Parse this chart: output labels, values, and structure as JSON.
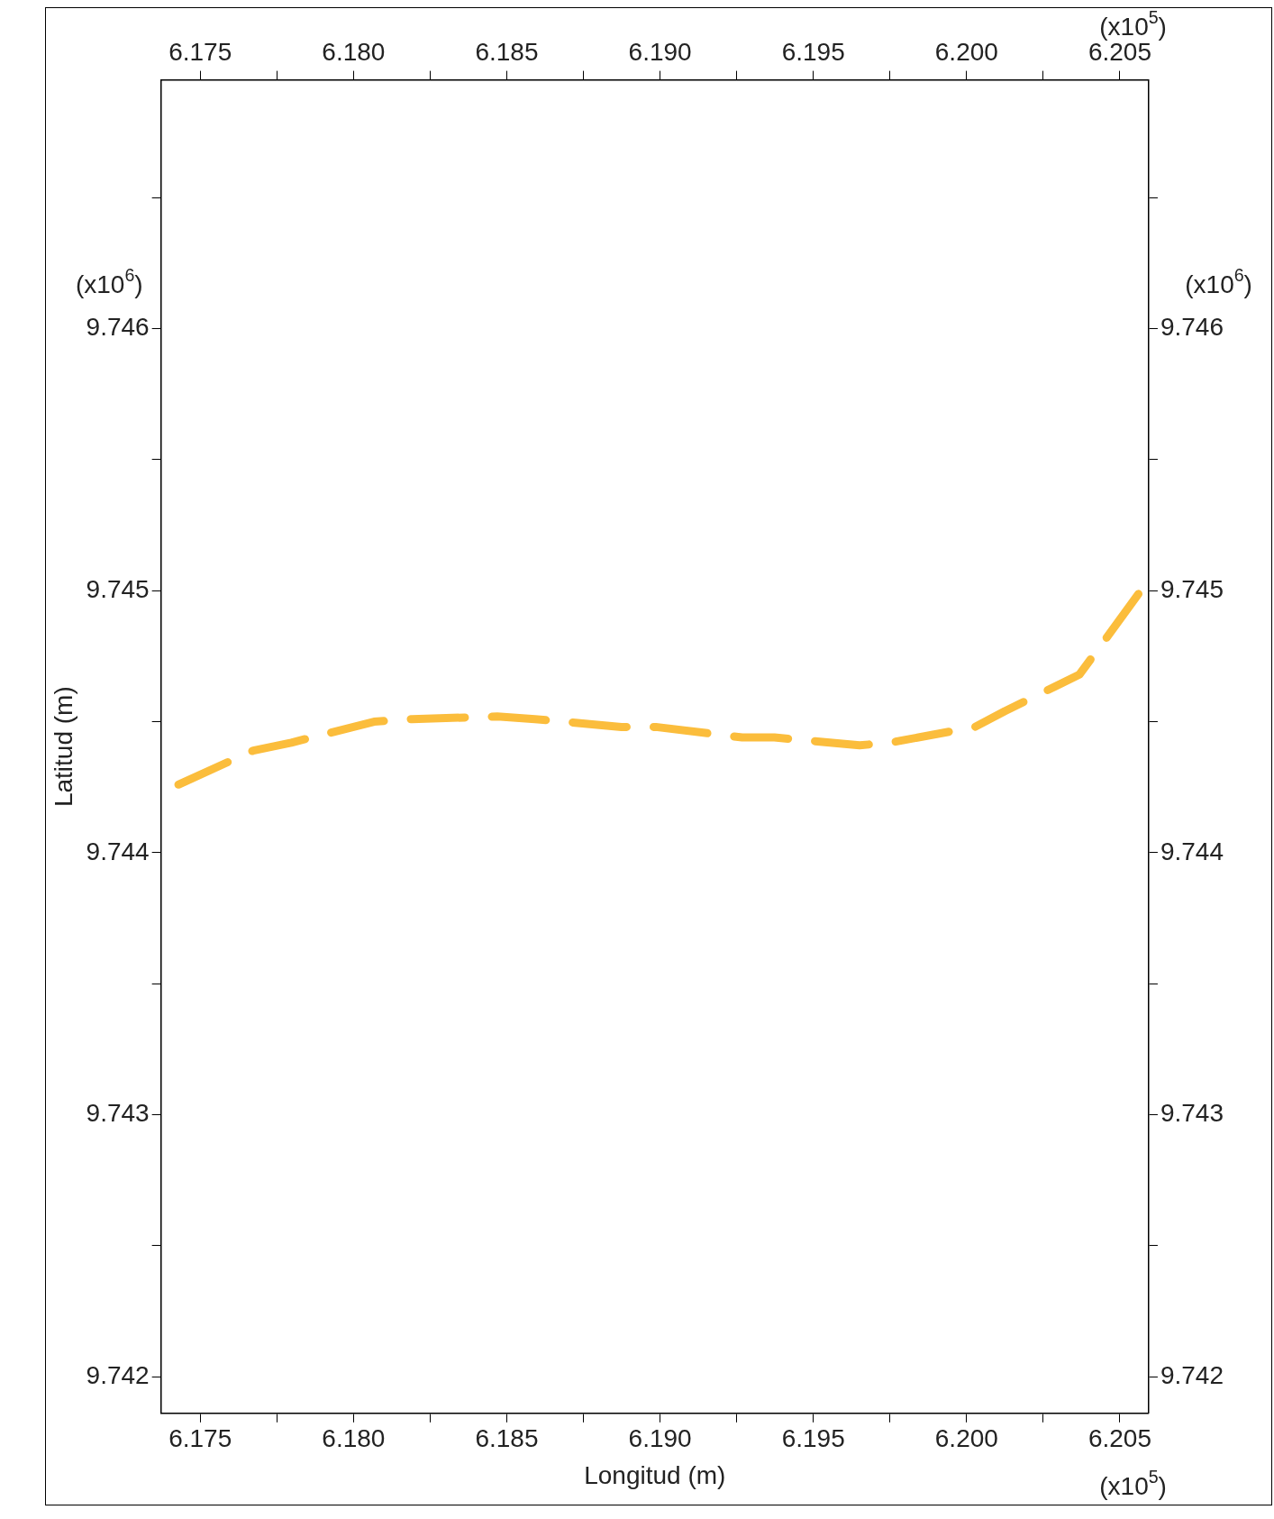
{
  "chart_data": {
    "type": "line",
    "xlabel": "Longitud (m)",
    "ylabel": "Latitud (m)",
    "x": [
      6.17429,
      6.17673,
      6.17797,
      6.18067,
      6.18191,
      6.18469,
      6.18592,
      6.18874,
      6.18986,
      6.19268,
      6.19373,
      6.19651,
      6.1975,
      6.20027,
      6.20124,
      6.20368,
      6.2045,
      6.20593
    ],
    "series": [
      {
        "color": "#fbbd3c",
        "values": [
          9.74426,
          9.74439,
          9.74442,
          9.7445,
          9.74451,
          9.74452,
          9.74451,
          9.74448,
          9.74448,
          9.74444,
          9.74444,
          9.74441,
          9.74442,
          9.74448,
          9.74454,
          9.74468,
          9.74481,
          9.74504
        ]
      }
    ],
    "xlim": [
      6.17372,
      6.20594
    ],
    "x2lim": [
      6.17372,
      6.20594
    ],
    "xticks": [
      {
        "value": 6.175,
        "label": "6.175"
      },
      {
        "value": 6.1775,
        "label": null
      },
      {
        "value": 6.18,
        "label": "6.180"
      },
      {
        "value": 6.1825,
        "label": null
      },
      {
        "value": 6.185,
        "label": "6.185"
      },
      {
        "value": 6.1875,
        "label": null
      },
      {
        "value": 6.19,
        "label": "6.190"
      },
      {
        "value": 6.1925,
        "label": null
      },
      {
        "value": 6.195,
        "label": "6.195"
      },
      {
        "value": 6.1975,
        "label": null
      },
      {
        "value": 6.2,
        "label": "6.200"
      },
      {
        "value": 6.2025,
        "label": null
      },
      {
        "value": 6.205,
        "label": "6.205"
      }
    ],
    "x2ticks": [
      {
        "value": 6.175,
        "label": "6.175"
      },
      {
        "value": 6.1775,
        "label": null
      },
      {
        "value": 6.18,
        "label": "6.180"
      },
      {
        "value": 6.1825,
        "label": null
      },
      {
        "value": 6.185,
        "label": "6.185"
      },
      {
        "value": 6.1875,
        "label": null
      },
      {
        "value": 6.19,
        "label": "6.190"
      },
      {
        "value": 6.1925,
        "label": null
      },
      {
        "value": 6.195,
        "label": "6.195"
      },
      {
        "value": 6.1975,
        "label": null
      },
      {
        "value": 6.2,
        "label": "6.200"
      },
      {
        "value": 6.2025,
        "label": null
      },
      {
        "value": 6.205,
        "label": "6.205"
      }
    ],
    "ylim": [
      9.74186,
      9.74695
    ],
    "y2lim": [
      9.74186,
      9.74695
    ],
    "yticks": [
      9.742,
      {
        "value": 9.7425,
        "label": null
      },
      9.743,
      {
        "value": 9.7435,
        "label": null
      },
      9.744,
      {
        "value": 9.7445,
        "label": null
      },
      9.745,
      {
        "value": 9.7455,
        "label": null
      },
      9.746,
      {
        "value": 9.7465,
        "label": null
      }
    ],
    "y2ticks": [
      9.742,
      {
        "value": 9.7425,
        "label": null
      },
      9.743,
      {
        "value": 9.7435,
        "label": null
      },
      9.744,
      {
        "value": 9.7445,
        "label": null
      },
      9.745,
      {
        "value": 9.7455,
        "label": null
      },
      9.746,
      {
        "value": 9.7465,
        "label": null
      }
    ],
    "annotations": [
      "(x10$^{5}$)",
      "(x10$^{5}$)",
      "(x10$^{6}$)",
      "(x10$^{6}$)"
    ],
    "line_style": "dashed",
    "marker": "none",
    "grid": false,
    "legend": false
  }
}
